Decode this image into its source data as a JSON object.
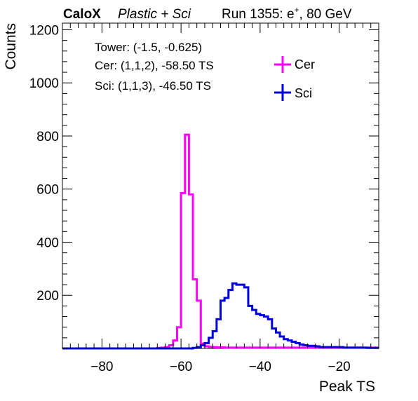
{
  "header": {
    "brand": "CaloX",
    "config": "Plastic + Sci",
    "run_prefix": "Run 1355: e",
    "run_sup": "+",
    "run_suffix": ", 80 GeV"
  },
  "annotations": {
    "tower": "Tower: (-1.5, -0.625)",
    "cer": "Cer: (1,1,2), -58.50 TS",
    "sci": "Sci: (1,1,3), -46.50 TS"
  },
  "chart_data": {
    "type": "line",
    "step": true,
    "xlabel": "Peak TS",
    "ylabel": "Counts",
    "xlim": [
      -90,
      -10
    ],
    "ylim": [
      0,
      1225
    ],
    "xticks": [
      -80,
      -60,
      -40,
      -20
    ],
    "yticks": [
      200,
      400,
      600,
      800,
      1000,
      1200
    ],
    "legend": {
      "placement": "top-right",
      "entries": [
        "Cer",
        "Sci"
      ]
    },
    "colors": {
      "Cer": "#ff00ff",
      "Sci": "#0000dd"
    },
    "series": [
      {
        "name": "Cer",
        "color": "#ff00ff",
        "x": [
          -90,
          -66,
          -65,
          -64,
          -63,
          -62,
          -61,
          -60,
          -59,
          -58,
          -57,
          -56,
          -55,
          -54,
          -53,
          -52,
          -51,
          -50,
          -49,
          -48,
          -47,
          -46,
          -45,
          -44,
          -43,
          -42,
          -41,
          -40,
          -39,
          -38,
          -37,
          -36,
          -35,
          -34,
          -33,
          -32,
          -31,
          -30,
          -29,
          -28,
          -27,
          -26,
          -25,
          -24,
          -23,
          -22,
          -21,
          -20,
          -19,
          -18,
          -17,
          -16,
          -15,
          -14,
          -13,
          -12,
          -11
        ],
        "values": [
          0,
          2,
          3,
          5,
          12,
          30,
          80,
          585,
          805,
          580,
          260,
          180,
          18,
          8,
          6,
          5,
          4,
          4,
          3,
          3,
          3,
          3,
          3,
          3,
          3,
          3,
          3,
          3,
          3,
          3,
          3,
          3,
          3,
          3,
          3,
          3,
          3,
          3,
          3,
          3,
          3,
          3,
          3,
          3,
          3,
          3,
          3,
          3,
          3,
          3,
          3,
          3,
          3,
          3,
          3,
          3,
          3
        ]
      },
      {
        "name": "Sci",
        "color": "#0000dd",
        "x": [
          -90,
          -57,
          -56,
          -55,
          -54,
          -53,
          -52,
          -51,
          -50,
          -49,
          -48,
          -47,
          -46,
          -45,
          -44,
          -43,
          -42,
          -41,
          -40,
          -39,
          -38,
          -37,
          -36,
          -35,
          -34,
          -33,
          -32,
          -31,
          -30,
          -29,
          -28,
          -27,
          -26,
          -25,
          -24,
          -23,
          -22,
          -21,
          -20,
          -19,
          -18,
          -17,
          -16,
          -15,
          -14,
          -13,
          -12,
          -11
        ],
        "values": [
          0,
          2,
          5,
          12,
          20,
          40,
          65,
          110,
          180,
          190,
          220,
          245,
          240,
          240,
          230,
          160,
          145,
          130,
          125,
          120,
          110,
          75,
          60,
          45,
          35,
          30,
          25,
          20,
          15,
          12,
          10,
          10,
          8,
          5,
          5,
          5,
          5,
          5,
          5,
          3,
          3,
          3,
          3,
          3,
          3,
          2,
          2,
          2
        ]
      }
    ]
  }
}
